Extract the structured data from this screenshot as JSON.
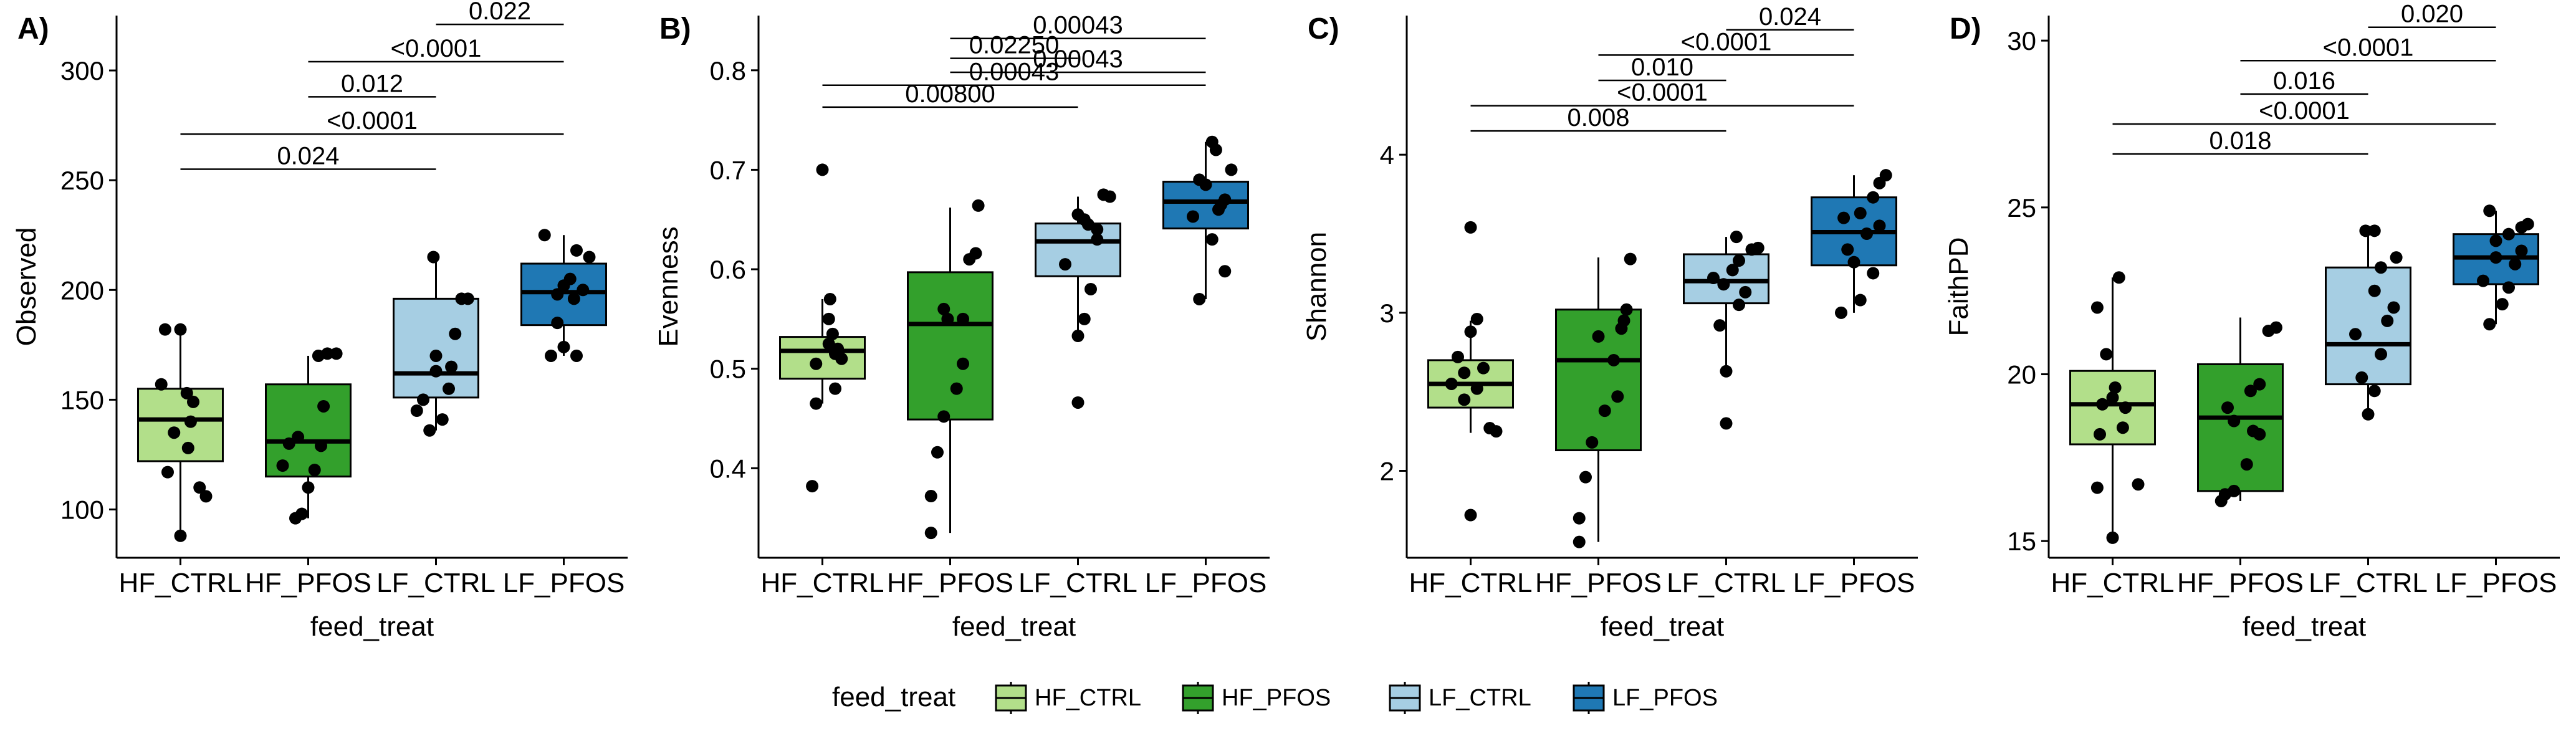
{
  "colors": {
    "HF_CTRL": "#b2df8a",
    "HF_PFOS": "#33a02c",
    "LF_CTRL": "#a6cee3",
    "LF_PFOS": "#1f78b4"
  },
  "legend": {
    "title": "feed_treat",
    "items": [
      "HF_CTRL",
      "HF_PFOS",
      "LF_CTRL",
      "LF_PFOS"
    ]
  },
  "chart_data": [
    {
      "type": "box",
      "panel_label": "A)",
      "xlabel": "feed_treat",
      "ylabel": "Observed",
      "categories": [
        "HF_CTRL",
        "HF_PFOS",
        "LF_CTRL",
        "LF_PFOS"
      ],
      "ylim": [
        78,
        325
      ],
      "yticks": [
        100,
        150,
        200,
        250,
        300
      ],
      "ytick_labels": [
        "100",
        "150",
        "200",
        "250",
        "300"
      ],
      "boxes": [
        {
          "q1": 122,
          "median": 141,
          "q3": 155,
          "whisker_low": 88,
          "whisker_high": 181
        },
        {
          "q1": 115,
          "median": 131,
          "q3": 157,
          "whisker_low": 96,
          "whisker_high": 170
        },
        {
          "q1": 151,
          "median": 162,
          "q3": 196,
          "whisker_low": 136,
          "whisker_high": 215
        },
        {
          "q1": 184,
          "median": 199,
          "q3": 212,
          "whisker_low": 170,
          "whisker_high": 225
        }
      ],
      "points": [
        [
          [
            0,
            88
          ],
          [
            -0.15,
            157
          ],
          [
            0.05,
            153
          ],
          [
            0.1,
            149
          ],
          [
            0.08,
            140
          ],
          [
            -0.05,
            135
          ],
          [
            0.15,
            110
          ],
          [
            0.2,
            106
          ],
          [
            -0.1,
            117
          ],
          [
            0.06,
            128
          ],
          [
            0.0,
            182
          ],
          [
            -0.12,
            182
          ]
        ],
        [
          [
            -0.1,
            96
          ],
          [
            -0.05,
            98
          ],
          [
            -0.15,
            130
          ],
          [
            0.1,
            129
          ],
          [
            0.05,
            118
          ],
          [
            0.0,
            110
          ],
          [
            -0.08,
            133
          ],
          [
            0.12,
            147
          ],
          [
            0.15,
            171
          ],
          [
            0.22,
            171
          ],
          [
            0.08,
            170
          ],
          [
            -0.2,
            120
          ]
        ],
        [
          [
            -0.05,
            136
          ],
          [
            0.05,
            141
          ],
          [
            0.1,
            155
          ],
          [
            -0.1,
            150
          ],
          [
            0.0,
            170
          ],
          [
            0.15,
            180
          ],
          [
            0.2,
            196
          ],
          [
            0.25,
            196
          ],
          [
            -0.02,
            215
          ],
          [
            0.0,
            163
          ],
          [
            0.12,
            165
          ],
          [
            -0.15,
            145
          ]
        ],
        [
          [
            -0.1,
            170
          ],
          [
            0.1,
            170
          ],
          [
            0.0,
            174
          ],
          [
            -0.05,
            185
          ],
          [
            0.15,
            200
          ],
          [
            0.05,
            205
          ],
          [
            0.2,
            215
          ],
          [
            0.1,
            218
          ],
          [
            -0.15,
            225
          ],
          [
            -0.05,
            198
          ],
          [
            0.08,
            196
          ],
          [
            0.0,
            202
          ]
        ]
      ],
      "comparisons": [
        {
          "g1": 0,
          "g2": 2,
          "label": "0.024",
          "y": 255
        },
        {
          "g1": 0,
          "g2": 3,
          "label": "<0.0001",
          "y": 271
        },
        {
          "g1": 1,
          "g2": 2,
          "label": "0.012",
          "y": 288
        },
        {
          "g1": 1,
          "g2": 3,
          "label": "<0.0001",
          "y": 304
        },
        {
          "g1": 2,
          "g2": 3,
          "label": "0.022",
          "y": 321
        }
      ]
    },
    {
      "type": "box",
      "panel_label": "B)",
      "xlabel": "feed_treat",
      "ylabel": "Evenness",
      "categories": [
        "HF_CTRL",
        "HF_PFOS",
        "LF_CTRL",
        "LF_PFOS"
      ],
      "ylim": [
        0.31,
        0.855
      ],
      "yticks": [
        0.4,
        0.5,
        0.6,
        0.7,
        0.8
      ],
      "ytick_labels": [
        "0.4",
        "0.5",
        "0.6",
        "0.7",
        "0.8"
      ],
      "boxes": [
        {
          "q1": 0.49,
          "median": 0.518,
          "q3": 0.532,
          "whisker_low": 0.465,
          "whisker_high": 0.57
        },
        {
          "q1": 0.449,
          "median": 0.545,
          "q3": 0.597,
          "whisker_low": 0.335,
          "whisker_high": 0.662
        },
        {
          "q1": 0.593,
          "median": 0.628,
          "q3": 0.646,
          "whisker_low": 0.533,
          "whisker_high": 0.673
        },
        {
          "q1": 0.641,
          "median": 0.668,
          "q3": 0.688,
          "whisker_low": 0.57,
          "whisker_high": 0.728
        }
      ],
      "points": [
        [
          [
            0.0,
            0.7
          ],
          [
            -0.08,
            0.382
          ],
          [
            -0.05,
            0.465
          ],
          [
            0.1,
            0.48
          ],
          [
            0.15,
            0.51
          ],
          [
            0.12,
            0.52
          ],
          [
            0.05,
            0.525
          ],
          [
            0.08,
            0.535
          ],
          [
            0.05,
            0.55
          ],
          [
            0.06,
            0.57
          ],
          [
            -0.05,
            0.505
          ],
          [
            0.1,
            0.515
          ]
        ],
        [
          [
            -0.15,
            0.335
          ],
          [
            -0.15,
            0.372
          ],
          [
            -0.1,
            0.416
          ],
          [
            -0.05,
            0.452
          ],
          [
            0.05,
            0.48
          ],
          [
            0.1,
            0.505
          ],
          [
            -0.05,
            0.56
          ],
          [
            0.1,
            0.55
          ],
          [
            0.15,
            0.61
          ],
          [
            0.2,
            0.616
          ],
          [
            0.22,
            0.664
          ],
          [
            -0.02,
            0.55
          ]
        ],
        [
          [
            0.0,
            0.466
          ],
          [
            0.0,
            0.533
          ],
          [
            0.05,
            0.55
          ],
          [
            0.1,
            0.58
          ],
          [
            -0.1,
            0.605
          ],
          [
            0.15,
            0.63
          ],
          [
            0.05,
            0.65
          ],
          [
            0.0,
            0.655
          ],
          [
            0.2,
            0.675
          ],
          [
            0.25,
            0.673
          ],
          [
            0.15,
            0.64
          ],
          [
            0.08,
            0.645
          ]
        ],
        [
          [
            -0.05,
            0.57
          ],
          [
            0.15,
            0.598
          ],
          [
            0.05,
            0.63
          ],
          [
            -0.1,
            0.653
          ],
          [
            0.1,
            0.66
          ],
          [
            0.15,
            0.67
          ],
          [
            0.0,
            0.685
          ],
          [
            0.2,
            0.7
          ],
          [
            0.08,
            0.72
          ],
          [
            0.05,
            0.728
          ],
          [
            -0.05,
            0.69
          ],
          [
            0.12,
            0.665
          ]
        ]
      ],
      "comparisons": [
        {
          "g1": 0,
          "g2": 2,
          "label": "0.00800",
          "y": 0.763
        },
        {
          "g1": 0,
          "g2": 3,
          "label": "0.00043",
          "y": 0.785
        },
        {
          "g1": 1,
          "g2": 3,
          "label": "0.00043",
          "y": 0.798
        },
        {
          "g1": 1,
          "g2": 2,
          "label": "0.02250",
          "y": 0.812
        },
        {
          "g1": 1,
          "g2": 3,
          "label": "0.00043",
          "y": 0.832
        }
      ]
    },
    {
      "type": "box",
      "panel_label": "C)",
      "xlabel": "feed_treat",
      "ylabel": "Shannon",
      "categories": [
        "HF_CTRL",
        "HF_PFOS",
        "LF_CTRL",
        "LF_PFOS"
      ],
      "ylim": [
        1.45,
        4.88
      ],
      "yticks": [
        2,
        3,
        4
      ],
      "ytick_labels": [
        "2",
        "3",
        "4"
      ],
      "boxes": [
        {
          "q1": 2.4,
          "median": 2.55,
          "q3": 2.7,
          "whisker_low": 2.24,
          "whisker_high": 2.95
        },
        {
          "q1": 2.13,
          "median": 2.7,
          "q3": 3.02,
          "whisker_low": 1.55,
          "whisker_high": 3.35
        },
        {
          "q1": 3.06,
          "median": 3.2,
          "q3": 3.37,
          "whisker_low": 2.63,
          "whisker_high": 3.48
        },
        {
          "q1": 3.3,
          "median": 3.51,
          "q3": 3.73,
          "whisker_low": 3.0,
          "whisker_high": 3.87
        }
      ],
      "points": [
        [
          [
            0.0,
            3.54
          ],
          [
            0.05,
            2.96
          ],
          [
            0.0,
            2.88
          ],
          [
            -0.1,
            2.72
          ],
          [
            0.1,
            2.65
          ],
          [
            -0.05,
            2.62
          ],
          [
            0.05,
            2.52
          ],
          [
            0.15,
            2.27
          ],
          [
            0.2,
            2.25
          ],
          [
            -0.15,
            2.55
          ],
          [
            0.0,
            1.72
          ],
          [
            -0.05,
            2.45
          ]
        ],
        [
          [
            -0.15,
            1.55
          ],
          [
            -0.15,
            1.7
          ],
          [
            -0.1,
            1.96
          ],
          [
            -0.05,
            2.18
          ],
          [
            0.05,
            2.38
          ],
          [
            0.15,
            2.47
          ],
          [
            0.12,
            2.7
          ],
          [
            0.2,
            2.95
          ],
          [
            0.22,
            3.02
          ],
          [
            0.25,
            3.34
          ],
          [
            0.18,
            2.9
          ],
          [
            0.0,
            2.85
          ]
        ],
        [
          [
            0.0,
            2.3
          ],
          [
            0.0,
            2.63
          ],
          [
            -0.05,
            2.92
          ],
          [
            0.1,
            3.05
          ],
          [
            0.15,
            3.13
          ],
          [
            -0.1,
            3.22
          ],
          [
            0.05,
            3.27
          ],
          [
            0.1,
            3.33
          ],
          [
            0.2,
            3.4
          ],
          [
            0.25,
            3.41
          ],
          [
            0.08,
            3.48
          ],
          [
            -0.02,
            3.18
          ]
        ],
        [
          [
            -0.1,
            3.0
          ],
          [
            0.05,
            3.08
          ],
          [
            0.15,
            3.25
          ],
          [
            0.0,
            3.32
          ],
          [
            -0.05,
            3.4
          ],
          [
            0.1,
            3.5
          ],
          [
            0.2,
            3.55
          ],
          [
            0.05,
            3.63
          ],
          [
            0.15,
            3.73
          ],
          [
            0.2,
            3.82
          ],
          [
            0.25,
            3.87
          ],
          [
            -0.08,
            3.6
          ]
        ]
      ],
      "comparisons": [
        {
          "g1": 0,
          "g2": 2,
          "label": "0.008",
          "y": 4.15
        },
        {
          "g1": 0,
          "g2": 3,
          "label": "<0.0001",
          "y": 4.31
        },
        {
          "g1": 1,
          "g2": 2,
          "label": "0.010",
          "y": 4.47
        },
        {
          "g1": 1,
          "g2": 3,
          "label": "<0.0001",
          "y": 4.63
        },
        {
          "g1": 2,
          "g2": 3,
          "label": "0.024",
          "y": 4.79
        }
      ]
    },
    {
      "type": "box",
      "panel_label": "D)",
      "xlabel": "feed_treat",
      "ylabel": "FaithPD",
      "categories": [
        "HF_CTRL",
        "HF_PFOS",
        "LF_CTRL",
        "LF_PFOS"
      ],
      "ylim": [
        14.5,
        30.75
      ],
      "yticks": [
        15,
        20,
        25,
        30
      ],
      "ytick_labels": [
        "15",
        "20",
        "25",
        "30"
      ],
      "boxes": [
        {
          "q1": 17.9,
          "median": 19.1,
          "q3": 20.1,
          "whisker_low": 15.1,
          "whisker_high": 22.9
        },
        {
          "q1": 16.5,
          "median": 18.7,
          "q3": 20.3,
          "whisker_low": 16.2,
          "whisker_high": 21.7
        },
        {
          "q1": 19.7,
          "median": 20.9,
          "q3": 23.2,
          "whisker_low": 18.8,
          "whisker_high": 24.3
        },
        {
          "q1": 22.7,
          "median": 23.5,
          "q3": 24.2,
          "whisker_low": 21.5,
          "whisker_high": 24.9
        }
      ],
      "points": [
        [
          [
            0.0,
            15.1
          ],
          [
            -0.12,
            16.6
          ],
          [
            0.2,
            16.7
          ],
          [
            -0.1,
            18.2
          ],
          [
            0.08,
            18.4
          ],
          [
            -0.08,
            19.1
          ],
          [
            0.1,
            19.0
          ],
          [
            0.02,
            19.6
          ],
          [
            -0.05,
            20.6
          ],
          [
            -0.12,
            22.0
          ],
          [
            0.05,
            22.9
          ],
          [
            0.0,
            19.3
          ]
        ],
        [
          [
            -0.15,
            16.2
          ],
          [
            -0.12,
            16.4
          ],
          [
            -0.05,
            16.5
          ],
          [
            0.05,
            17.3
          ],
          [
            0.1,
            18.3
          ],
          [
            0.15,
            18.2
          ],
          [
            -0.1,
            19.0
          ],
          [
            0.08,
            19.5
          ],
          [
            0.22,
            21.3
          ],
          [
            0.28,
            21.4
          ],
          [
            0.15,
            19.7
          ],
          [
            -0.05,
            18.6
          ]
        ],
        [
          [
            0.0,
            18.8
          ],
          [
            0.05,
            19.5
          ],
          [
            -0.05,
            19.9
          ],
          [
            0.1,
            20.6
          ],
          [
            0.15,
            21.6
          ],
          [
            -0.1,
            21.2
          ],
          [
            0.2,
            22.0
          ],
          [
            0.05,
            22.5
          ],
          [
            0.1,
            23.2
          ],
          [
            0.22,
            23.5
          ],
          [
            -0.02,
            24.3
          ],
          [
            0.05,
            24.3
          ]
        ],
        [
          [
            -0.05,
            21.5
          ],
          [
            0.05,
            22.1
          ],
          [
            0.1,
            22.6
          ],
          [
            -0.1,
            22.8
          ],
          [
            0.15,
            23.3
          ],
          [
            0.2,
            23.7
          ],
          [
            0.0,
            24.0
          ],
          [
            0.1,
            24.2
          ],
          [
            0.2,
            24.4
          ],
          [
            0.25,
            24.5
          ],
          [
            -0.05,
            24.9
          ],
          [
            0.0,
            23.5
          ]
        ]
      ],
      "comparisons": [
        {
          "g1": 0,
          "g2": 2,
          "label": "0.018",
          "y": 26.6
        },
        {
          "g1": 0,
          "g2": 3,
          "label": "<0.0001",
          "y": 27.5
        },
        {
          "g1": 1,
          "g2": 2,
          "label": "0.016",
          "y": 28.4
        },
        {
          "g1": 1,
          "g2": 3,
          "label": "<0.0001",
          "y": 29.4
        },
        {
          "g1": 2,
          "g2": 3,
          "label": "0.020",
          "y": 30.4
        }
      ]
    }
  ]
}
